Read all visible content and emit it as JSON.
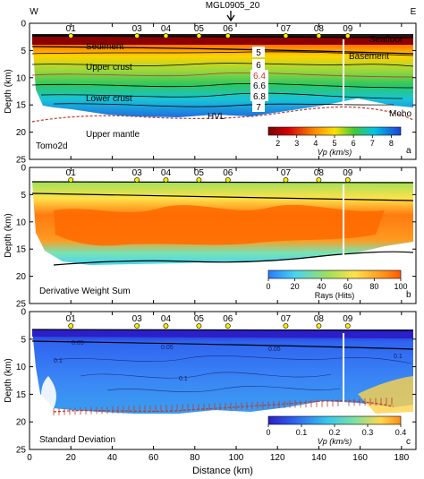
{
  "chart_data": [
    {
      "type": "heatmap",
      "figure_title": "MGL0905_20",
      "direction_left": "W",
      "direction_right": "E",
      "stations": [
        "01",
        "03",
        "04",
        "05",
        "06",
        "07",
        "08",
        "09"
      ],
      "station_x_km": [
        20,
        52,
        66,
        82,
        96,
        124,
        140,
        154
      ],
      "xlim": [
        0,
        187
      ],
      "ylim": [
        0,
        25
      ],
      "ylabel": "Depth (km)",
      "xticks": [
        0,
        20,
        40,
        60,
        80,
        100,
        120,
        140,
        160,
        180
      ],
      "yticks": [
        0,
        5,
        10,
        15,
        20,
        25
      ],
      "layer_labels": [
        "Sediment",
        "Upper crust",
        "Lower crust",
        "Upper mantle",
        "Seafloor",
        "Basement",
        "HVL",
        "Moho"
      ],
      "contour_labels": [
        "5",
        "6",
        "6.4",
        "6.6",
        "6.8",
        "7"
      ],
      "model_label": "Tomo2d",
      "panel_label": "a",
      "colorbar": {
        "label": "Vp (km/s)",
        "ticks": [
          "2",
          "3",
          "4",
          "5",
          "6",
          "7",
          "8"
        ],
        "range": [
          1.5,
          8.5
        ]
      },
      "seafloor_depth": [
        [
          0,
          2.8
        ],
        [
          60,
          2.8
        ],
        [
          120,
          3.0
        ],
        [
          187,
          3.5
        ]
      ],
      "basement_depth": [
        [
          0,
          4.5
        ],
        [
          50,
          4.8
        ],
        [
          100,
          5.0
        ],
        [
          150,
          5.8
        ],
        [
          187,
          6.2
        ]
      ],
      "moho_depth": [
        [
          0,
          19.5
        ],
        [
          20,
          17.8
        ],
        [
          60,
          17.5
        ],
        [
          100,
          18.0
        ],
        [
          140,
          16.0
        ],
        [
          187,
          19.0
        ]
      ],
      "vertical_marker_x_km": 153
    },
    {
      "type": "heatmap",
      "panel_label": "b",
      "title": "Derivative Weight Sum",
      "ylabel": "Depth (km)",
      "xlim": [
        0,
        187
      ],
      "ylim": [
        0,
        25
      ],
      "colorbar": {
        "label": "Rays (Hits)",
        "ticks": [
          "0",
          "20",
          "40",
          "60",
          "80",
          "100"
        ],
        "range": [
          0,
          100
        ]
      }
    },
    {
      "type": "heatmap",
      "panel_label": "c",
      "title": "Standard Deviation",
      "ylabel": "Depth (km)",
      "xlabel": "Distance (km)",
      "xlim": [
        0,
        187
      ],
      "ylim": [
        0,
        25
      ],
      "contour_labels": [
        "0.05",
        "0.1",
        "0.05",
        "0.1",
        "0.05",
        "0.1"
      ],
      "colorbar": {
        "label": "Vp (km/s)",
        "ticks": [
          "0",
          "0.1",
          "0.2",
          "0.3",
          "0.4"
        ],
        "range": [
          0,
          0.4
        ]
      }
    }
  ]
}
